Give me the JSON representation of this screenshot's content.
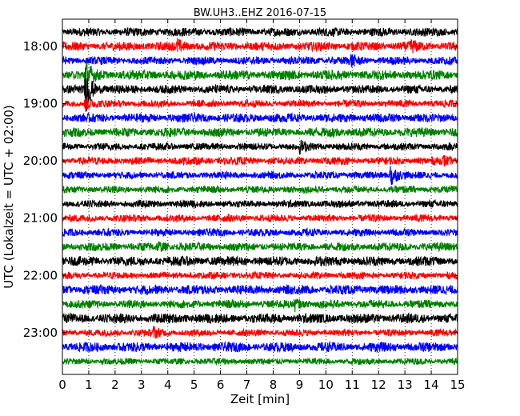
{
  "chart_data": {
    "type": "line",
    "title": "BW.UH3..EHZ 2016-07-15",
    "xlabel": "Zeit  [min]",
    "ylabel": "UTC (Lokalzeit = UTC + 02:00)",
    "xlim": [
      0,
      15
    ],
    "xticks": [
      "0",
      "1",
      "2",
      "3",
      "4",
      "5",
      "6",
      "7",
      "8",
      "9",
      "10",
      "11",
      "12",
      "13",
      "14",
      "15"
    ],
    "yticks": [
      "18:00",
      "19:00",
      "20:00",
      "21:00",
      "22:00",
      "23:00"
    ],
    "grid": "vertical dotted lines at each minute",
    "trace_interval_minutes": 15,
    "trace_start": "17:45",
    "trace_count": 24,
    "color_cycle": [
      "#000000",
      "#ff0000",
      "#0000ff",
      "#008000"
    ],
    "events": [
      {
        "trace": 4,
        "time_min": 0.85,
        "amplitude": 3.2
      },
      {
        "trace": 3,
        "time_min": 0.85,
        "amplitude": 1.8
      },
      {
        "trace": 10,
        "time_min": 12.45,
        "amplitude": 1.7
      },
      {
        "trace": 5,
        "time_min": 0.85,
        "amplitude": 0.9
      },
      {
        "trace": 1,
        "time_min": 4.35,
        "amplitude": 0.7
      },
      {
        "trace": 1,
        "time_min": 13.2,
        "amplitude": 0.6
      },
      {
        "trace": 2,
        "time_min": 10.95,
        "amplitude": 0.6
      },
      {
        "trace": 8,
        "time_min": 9.0,
        "amplitude": 0.6
      },
      {
        "trace": 9,
        "time_min": 14.45,
        "amplitude": 0.5
      },
      {
        "trace": 15,
        "time_min": 3.6,
        "amplitude": 0.5
      },
      {
        "trace": 19,
        "time_min": 8.8,
        "amplitude": 0.7
      },
      {
        "trace": 21,
        "time_min": 3.45,
        "amplitude": 0.6
      },
      {
        "trace": 7,
        "time_min": 10.2,
        "amplitude": 0.5
      }
    ]
  }
}
